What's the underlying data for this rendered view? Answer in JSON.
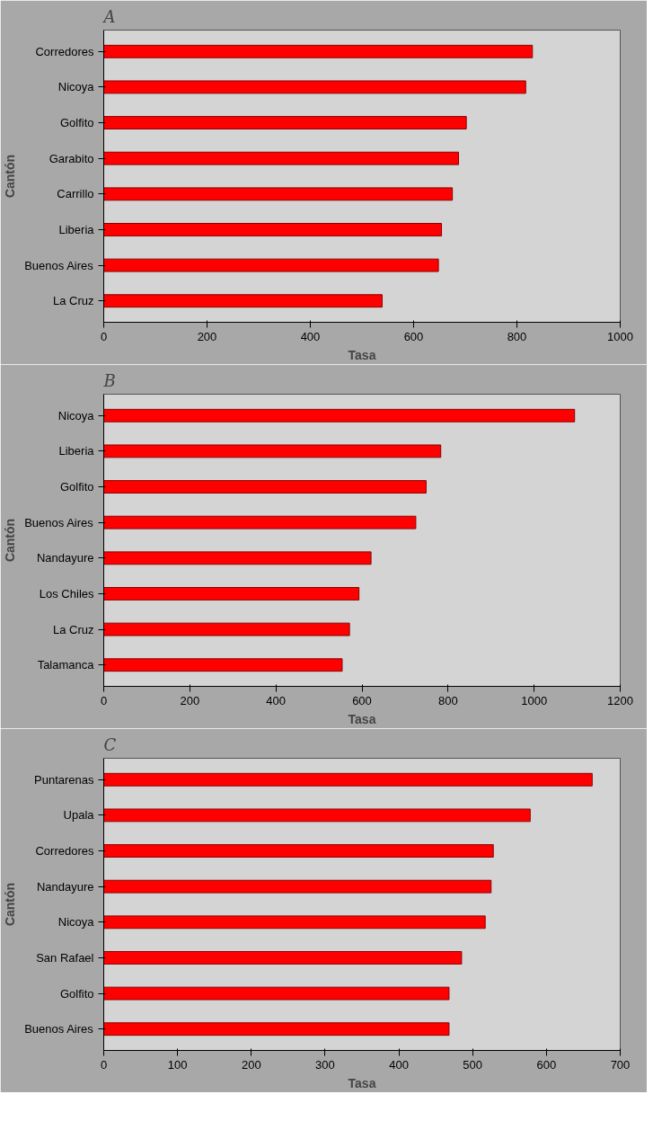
{
  "chart_data": [
    {
      "type": "bar",
      "orientation": "horizontal",
      "title": "A",
      "ylabel": "Cantón",
      "xlabel": "Tasa",
      "categories": [
        "Corredores",
        "Nicoya",
        "Golfito",
        "Garabito",
        "Carrillo",
        "Liberia",
        "Buenos Aires",
        "La Cruz"
      ],
      "values": [
        830,
        817,
        702,
        687,
        675,
        654,
        648,
        539
      ],
      "color": "#ff0000",
      "xlim": [
        0,
        1000
      ],
      "xticks": [
        0,
        200,
        400,
        600,
        800,
        1000
      ],
      "grid": false
    },
    {
      "type": "bar",
      "orientation": "horizontal",
      "title": "B",
      "ylabel": "Cantón",
      "xlabel": "Tasa",
      "categories": [
        "Nicoya",
        "Liberia",
        "Golfito",
        "Buenos Aires",
        "Nandayure",
        "Los Chiles",
        "La Cruz",
        "Talamanca"
      ],
      "values": [
        1094,
        783,
        749,
        725,
        621,
        593,
        571,
        554
      ],
      "color": "#ff0000",
      "xlim": [
        0,
        1200
      ],
      "xticks": [
        0,
        200,
        400,
        600,
        800,
        1000,
        1200
      ],
      "grid": false
    },
    {
      "type": "bar",
      "orientation": "horizontal",
      "title": "C",
      "ylabel": "Cantón",
      "xlabel": "Tasa",
      "categories": [
        "Puntarenas",
        "Upala",
        "Corredores",
        "Nandayure",
        "Nicoya",
        "San Rafael",
        "Golfito",
        "Buenos Aires"
      ],
      "values": [
        662,
        578,
        528,
        525,
        517,
        485,
        468,
        468
      ],
      "color": "#ff0000",
      "xlim": [
        0,
        700
      ],
      "xticks": [
        0,
        100,
        200,
        300,
        400,
        500,
        600,
        700
      ],
      "grid": false
    }
  ]
}
